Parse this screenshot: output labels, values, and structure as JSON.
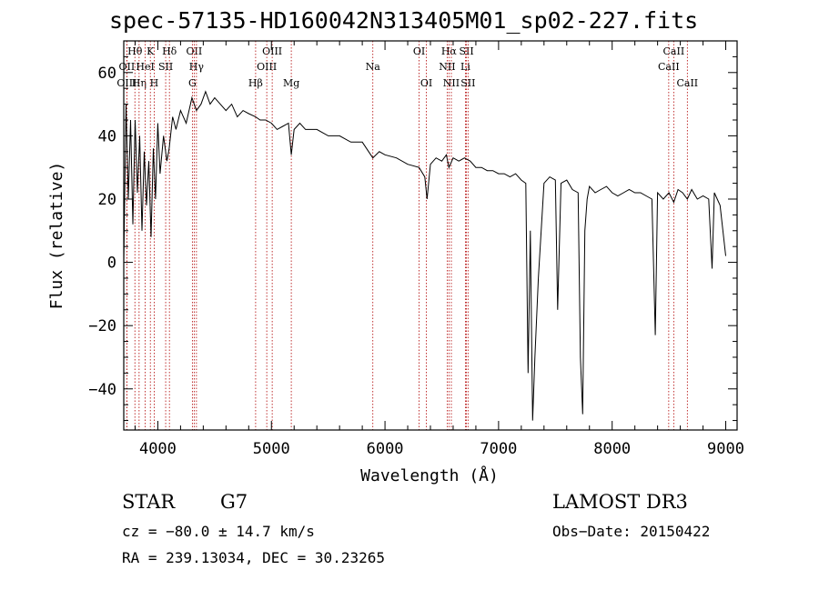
{
  "chart_data": {
    "type": "line",
    "title": "spec-57135-HD160042N313405M01_sp02-227.fits",
    "xlabel": "Wavelength (Å)",
    "ylabel": "Flux (relative)",
    "xlim": [
      3700,
      9100
    ],
    "ylim": [
      -53,
      70
    ],
    "xticks": [
      4000,
      5000,
      6000,
      7000,
      8000,
      9000
    ],
    "yticks": [
      -40,
      -20,
      0,
      20,
      40,
      60
    ],
    "series": [
      {
        "name": "spectrum",
        "x": [
          3700,
          3720,
          3740,
          3760,
          3780,
          3800,
          3820,
          3840,
          3860,
          3880,
          3900,
          3920,
          3940,
          3960,
          3980,
          4000,
          4020,
          4050,
          4080,
          4100,
          4130,
          4160,
          4200,
          4250,
          4300,
          4340,
          4380,
          4420,
          4460,
          4500,
          4550,
          4600,
          4650,
          4700,
          4750,
          4800,
          4861,
          4900,
          4950,
          5000,
          5050,
          5100,
          5150,
          5175,
          5200,
          5250,
          5300,
          5400,
          5500,
          5600,
          5700,
          5800,
          5893,
          5950,
          6000,
          6100,
          6200,
          6300,
          6350,
          6370,
          6400,
          6450,
          6500,
          6540,
          6563,
          6600,
          6650,
          6700,
          6750,
          6800,
          6850,
          6900,
          6950,
          7000,
          7050,
          7100,
          7150,
          7200,
          7240,
          7260,
          7280,
          7300,
          7320,
          7350,
          7400,
          7450,
          7500,
          7520,
          7550,
          7600,
          7650,
          7700,
          7720,
          7740,
          7760,
          7780,
          7800,
          7850,
          7900,
          7950,
          8000,
          8050,
          8100,
          8150,
          8200,
          8250,
          8300,
          8350,
          8380,
          8400,
          8450,
          8500,
          8542,
          8580,
          8620,
          8662,
          8700,
          8750,
          8800,
          8850,
          8880,
          8900,
          8950,
          9000
        ],
        "y": [
          0,
          50,
          20,
          45,
          12,
          45,
          22,
          40,
          10,
          35,
          18,
          32,
          8,
          36,
          20,
          44,
          28,
          40,
          32,
          36,
          46,
          42,
          48,
          44,
          52,
          48,
          50,
          54,
          50,
          52,
          50,
          48,
          50,
          46,
          48,
          47,
          46,
          45,
          45,
          44,
          42,
          43,
          44,
          34,
          42,
          44,
          42,
          42,
          40,
          40,
          38,
          38,
          33,
          35,
          34,
          33,
          31,
          30,
          27,
          20,
          31,
          33,
          32,
          34,
          30,
          33,
          32,
          33,
          32,
          30,
          30,
          29,
          29,
          28,
          28,
          27,
          28,
          26,
          25,
          -35,
          10,
          -50,
          -30,
          -5,
          25,
          27,
          26,
          -15,
          25,
          26,
          23,
          22,
          -30,
          -48,
          10,
          20,
          24,
          22,
          23,
          24,
          22,
          21,
          22,
          23,
          22,
          22,
          21,
          20,
          -23,
          22,
          20,
          22,
          19,
          23,
          22,
          20,
          23,
          20,
          21,
          20,
          -2,
          22,
          18,
          2
        ],
        "color": "#000000"
      }
    ],
    "line_markers": [
      {
        "label": "Hθ",
        "x": 3798,
        "row": 0
      },
      {
        "label": "OII",
        "x": 3727,
        "row": 1
      },
      {
        "label": "OIII",
        "x": 3727,
        "row": 2
      },
      {
        "label": "K",
        "x": 3934,
        "row": 0
      },
      {
        "label": "Hη",
        "x": 3835,
        "row": 2
      },
      {
        "label": "HeI",
        "x": 3889,
        "row": 1
      },
      {
        "label": "SII",
        "x": 4069,
        "row": 1
      },
      {
        "label": "H",
        "x": 3968,
        "row": 2
      },
      {
        "label": "Hδ",
        "x": 4102,
        "row": 0
      },
      {
        "label": "OII",
        "x": 4320,
        "row": 0
      },
      {
        "label": "Hγ",
        "x": 4340,
        "row": 1
      },
      {
        "label": "G",
        "x": 4304,
        "row": 2
      },
      {
        "label": "OIII",
        "x": 5007,
        "row": 0
      },
      {
        "label": "OIII",
        "x": 4959,
        "row": 1
      },
      {
        "label": "Hβ",
        "x": 4861,
        "row": 2
      },
      {
        "label": "Mg",
        "x": 5175,
        "row": 2
      },
      {
        "label": "Na",
        "x": 5893,
        "row": 1
      },
      {
        "label": "OI",
        "x": 6300,
        "row": 0
      },
      {
        "label": "OI",
        "x": 6364,
        "row": 2
      },
      {
        "label": "Hα",
        "x": 6563,
        "row": 0
      },
      {
        "label": "NII",
        "x": 6548,
        "row": 1
      },
      {
        "label": "NII",
        "x": 6584,
        "row": 2
      },
      {
        "label": "SII",
        "x": 6717,
        "row": 0
      },
      {
        "label": "Li",
        "x": 6708,
        "row": 1
      },
      {
        "label": "SII",
        "x": 6731,
        "row": 2
      },
      {
        "label": "CaII",
        "x": 8542,
        "row": 0
      },
      {
        "label": "CaII",
        "x": 8498,
        "row": 1
      },
      {
        "label": "CaII",
        "x": 8662,
        "row": 2
      }
    ]
  },
  "info": {
    "object_type": "STAR",
    "subclass": "G7",
    "survey": "LAMOST DR3",
    "redshift": "cz = −80.0 ± 14.7 km/s",
    "obs_date": "Obs−Date: 20150422",
    "coords": "RA = 239.13034, DEC =  30.23265"
  }
}
